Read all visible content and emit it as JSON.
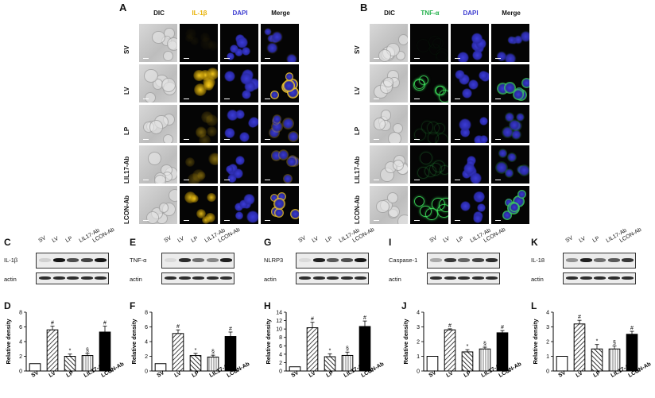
{
  "panels": {
    "A": {
      "label": "A",
      "columns": [
        "DIC",
        "IL-1β",
        "DAPI",
        "Merge"
      ],
      "marker_color": "#e8b000"
    },
    "B": {
      "label": "B",
      "columns": [
        "DIC",
        "TNF-α",
        "DAPI",
        "Merge"
      ],
      "marker_color": "#22b04a"
    }
  },
  "rows": [
    "SV",
    "LV",
    "LP",
    "LIL17-Ab",
    "LCON-Ab"
  ],
  "lanes": [
    "SV",
    "LV",
    "LP",
    "LIL17-Ab",
    "LCON-Ab"
  ],
  "blots": [
    {
      "panel": "C",
      "protein": "IL-1β",
      "loading": "actin",
      "intensity": [
        0.12,
        0.95,
        0.7,
        0.75,
        0.95
      ]
    },
    {
      "panel": "E",
      "protein": "TNF-α",
      "loading": "actin",
      "intensity": [
        0.08,
        0.85,
        0.55,
        0.45,
        0.9
      ]
    },
    {
      "panel": "G",
      "protein": "NLRP3",
      "loading": "actin",
      "intensity": [
        0.05,
        0.9,
        0.65,
        0.7,
        0.95
      ]
    },
    {
      "panel": "I",
      "protein": "Caspase-1",
      "loading": "actin",
      "intensity": [
        0.3,
        0.8,
        0.6,
        0.75,
        0.85
      ]
    },
    {
      "panel": "K",
      "protein": "IL-18",
      "loading": "actin",
      "intensity": [
        0.4,
        0.9,
        0.55,
        0.65,
        0.8
      ]
    }
  ],
  "chart_data": [
    {
      "panel": "D",
      "type": "bar",
      "ylabel": "Relative density",
      "categories": [
        "SV",
        "LV",
        "LP",
        "LIL17-Ab",
        "LCON-Ab"
      ],
      "values": [
        1,
        5.6,
        2,
        2.1,
        5.3
      ],
      "errors": [
        0,
        0.5,
        0.3,
        0.3,
        0.8
      ],
      "ylim": [
        0,
        8
      ],
      "yticks": [
        0,
        2,
        4,
        6,
        8
      ],
      "annotations": [
        "",
        "#",
        "*",
        "§",
        "#"
      ]
    },
    {
      "panel": "F",
      "type": "bar",
      "ylabel": "Relative density",
      "categories": [
        "SV",
        "LV",
        "LP",
        "LIL17-Ab",
        "LCON-Ab"
      ],
      "values": [
        1,
        5.1,
        2.1,
        1.9,
        4.7
      ],
      "errors": [
        0,
        0.5,
        0.3,
        0.25,
        0.6
      ],
      "ylim": [
        0,
        8
      ],
      "yticks": [
        0,
        2,
        4,
        6,
        8
      ],
      "annotations": [
        "",
        "#",
        "*",
        "§",
        "#"
      ]
    },
    {
      "panel": "H",
      "type": "bar",
      "ylabel": "Relative density",
      "categories": [
        "SV",
        "LV",
        "LP",
        "LIL17-Ab",
        "LCON-Ab"
      ],
      "values": [
        1,
        10.3,
        3.4,
        3.7,
        10.6
      ],
      "errors": [
        0,
        1.3,
        0.7,
        0.8,
        1.3
      ],
      "ylim": [
        0,
        14
      ],
      "yticks": [
        0,
        2,
        4,
        6,
        8,
        10,
        12,
        14
      ],
      "annotations": [
        "",
        "#",
        "*",
        "§",
        "#"
      ]
    },
    {
      "panel": "J",
      "type": "bar",
      "ylabel": "Relative density",
      "categories": [
        "SV",
        "LV",
        "LP",
        "LIL17-Ab",
        "LCON-Ab"
      ],
      "values": [
        1,
        2.8,
        1.3,
        1.5,
        2.6
      ],
      "errors": [
        0,
        0.07,
        0.15,
        0.12,
        0.15
      ],
      "ylim": [
        0,
        4
      ],
      "yticks": [
        0,
        1,
        2,
        3,
        4
      ],
      "annotations": [
        "",
        "#",
        "*",
        "§",
        "#"
      ]
    },
    {
      "panel": "L",
      "type": "bar",
      "ylabel": "Relative density",
      "categories": [
        "SV",
        "LV",
        "LP",
        "LIL17-Ab",
        "LCON-Ab"
      ],
      "values": [
        1,
        3.2,
        1.5,
        1.5,
        2.5
      ],
      "errors": [
        0,
        0.25,
        0.3,
        0.2,
        0.2
      ],
      "ylim": [
        0,
        4
      ],
      "yticks": [
        0,
        1,
        2,
        3,
        4
      ],
      "annotations": [
        "",
        "#",
        "*",
        "§",
        "#"
      ]
    }
  ],
  "micro_intensity": {
    "A": [
      0.05,
      0.95,
      0.25,
      0.3,
      0.85
    ],
    "B": [
      0.03,
      0.8,
      0.15,
      0.2,
      0.9
    ]
  }
}
